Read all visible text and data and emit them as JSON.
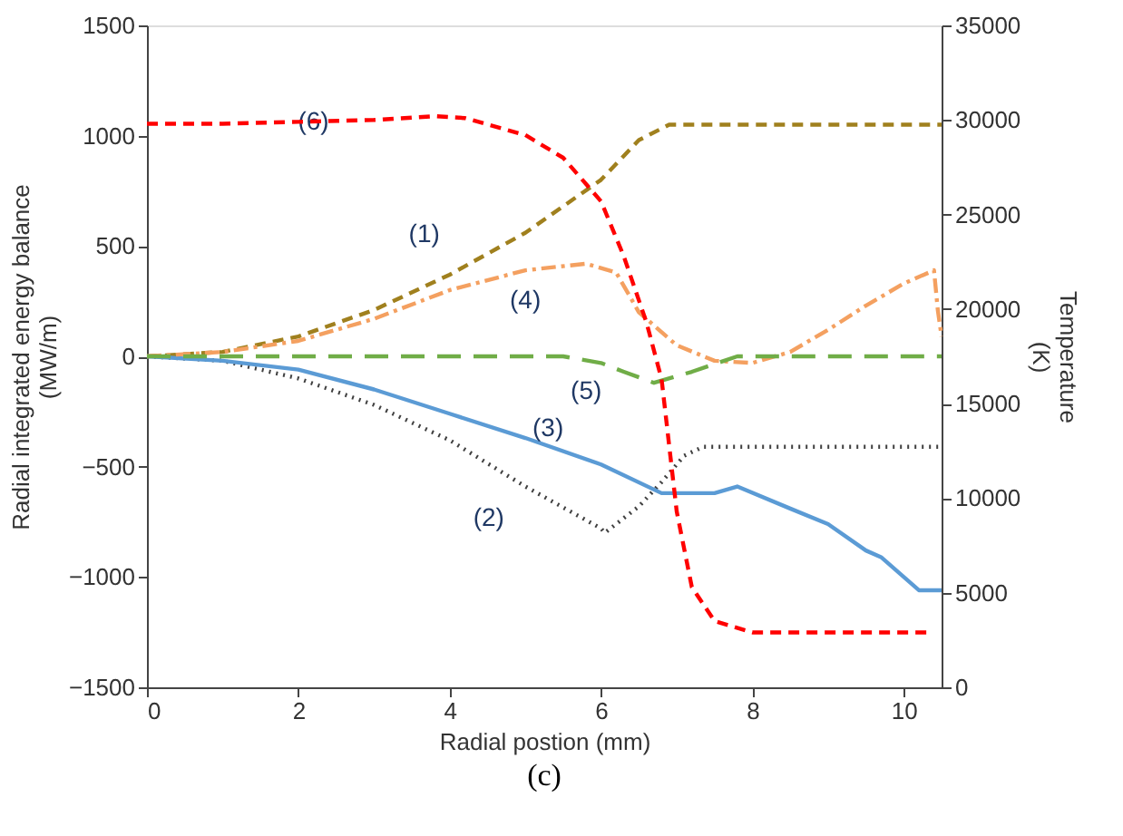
{
  "chart_data": {
    "type": "line",
    "xlabel": "Radial postion (mm)",
    "ylabel": "Radial integrated energy balance (MW/m)",
    "y2label": "Temperature (K)",
    "xlim": [
      0,
      10.5
    ],
    "xticks": [
      0,
      2,
      4,
      6,
      8,
      10
    ],
    "ylim": [
      -1500,
      1500
    ],
    "yticks": [
      -1500,
      -1000,
      -500,
      0,
      500,
      1000,
      1500
    ],
    "y2lim": [
      0,
      35000
    ],
    "y2ticks": [
      0,
      5000,
      10000,
      15000,
      20000,
      25000,
      30000,
      35000
    ],
    "grid": false,
    "legend": false,
    "marker": "none",
    "series": [
      {
        "color": "#a0801e",
        "line_style": "dashed",
        "x": [
          0,
          1,
          2,
          3,
          4,
          5,
          6,
          6.5,
          6.9,
          10.5
        ],
        "values": [
          0,
          20,
          90,
          210,
          370,
          560,
          800,
          980,
          1050,
          1050
        ]
      },
      {
        "color": "#404040",
        "line_style": "dotted",
        "x": [
          0,
          1,
          2,
          3,
          4,
          5,
          6,
          6.05,
          6.5,
          6.8,
          7.1,
          7.35,
          10.5
        ],
        "values": [
          0,
          -20,
          -100,
          -220,
          -380,
          -590,
          -780,
          -800,
          -680,
          -570,
          -450,
          -410,
          -410
        ]
      },
      {
        "color": "#5b9bd5",
        "line_style": "solid",
        "x": [
          0,
          1,
          2,
          3,
          4,
          5,
          6,
          6.8,
          7.5,
          7.8,
          8.5,
          9,
          9.5,
          9.7,
          10.2,
          10.5
        ],
        "values": [
          0,
          -20,
          -60,
          -150,
          -260,
          -370,
          -490,
          -620,
          -620,
          -590,
          -690,
          -760,
          -880,
          -910,
          -1060,
          -1060
        ]
      },
      {
        "color": "#f4a060",
        "line_style": "dashdot",
        "x": [
          0,
          1,
          2,
          3,
          4,
          5,
          5.8,
          6.2,
          6.5,
          7,
          7.5,
          8,
          8.5,
          9,
          9.5,
          10,
          10.4,
          10.45,
          10.5
        ],
        "values": [
          0,
          20,
          70,
          170,
          300,
          390,
          420,
          380,
          200,
          50,
          -20,
          -30,
          20,
          120,
          230,
          330,
          390,
          210,
          90
        ]
      },
      {
        "color": "#70ad47",
        "line_style": "longdash",
        "x": [
          0,
          5.5,
          6,
          6.3,
          6.7,
          7.2,
          7.8,
          10.5
        ],
        "values": [
          0,
          0,
          -30,
          -70,
          -120,
          -70,
          0,
          0
        ]
      },
      {
        "color": "#ff0000",
        "line_style": "dashed",
        "axis": "y2",
        "x": [
          0,
          1,
          2,
          3,
          3.8,
          4.2,
          5,
          5.5,
          6,
          6.3,
          6.6,
          6.8,
          7,
          7.2,
          7.5,
          8,
          10.3
        ],
        "values": [
          29800,
          29800,
          29900,
          30000,
          30200,
          30100,
          29200,
          28000,
          25700,
          22800,
          19300,
          16300,
          9300,
          5300,
          3500,
          2900,
          2900
        ]
      }
    ],
    "annotations": [
      {
        "text": "(1)",
        "x": 4,
        "y": 370
      },
      {
        "text": "(2)",
        "x": 4.9,
        "y": -570
      },
      {
        "text": "(3)",
        "x": 5.3,
        "y": -410
      },
      {
        "text": "(4)",
        "x": 5,
        "y": 390
      },
      {
        "text": "(5)",
        "x": 5.9,
        "y": -20
      },
      {
        "text": "(6)",
        "x": 2.2,
        "y": 1060
      },
      "(c)"
    ]
  }
}
